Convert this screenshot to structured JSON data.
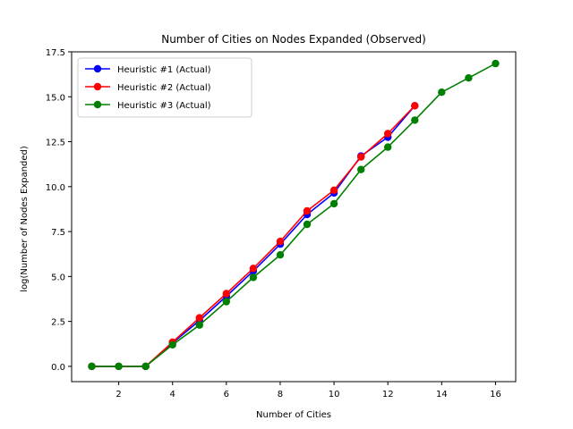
{
  "chart_data": {
    "type": "line",
    "title": "Number of Cities on Nodes Expanded (Observed)",
    "xlabel": "Number of Cities",
    "ylabel": "log(Number of Nodes Expanded)",
    "xlim": [
      0.25,
      16.75
    ],
    "ylim": [
      -0.85,
      17.5
    ],
    "xticks": [
      2,
      4,
      6,
      8,
      10,
      12,
      14,
      16
    ],
    "xtick_labels": [
      "2",
      "4",
      "6",
      "8",
      "10",
      "12",
      "14",
      "16"
    ],
    "yticks": [
      0,
      2.5,
      5,
      7.5,
      10,
      12.5,
      15,
      17.5
    ],
    "ytick_labels": [
      "0.0",
      "2.5",
      "5.0",
      "7.5",
      "10.0",
      "12.5",
      "15.0",
      "17.5"
    ],
    "grid": false,
    "legend_position": "upper-left",
    "series": [
      {
        "name": "Heuristic #1 (Actual)",
        "color": "#0000ff",
        "x": [
          1,
          2,
          3,
          4,
          5,
          6,
          7,
          8,
          9,
          10,
          11,
          12,
          13
        ],
        "y": [
          0.0,
          0.0,
          0.0,
          1.3,
          2.55,
          3.9,
          5.3,
          6.8,
          8.45,
          9.65,
          11.7,
          12.75,
          14.5
        ]
      },
      {
        "name": "Heuristic #2 (Actual)",
        "color": "#ff0000",
        "x": [
          1,
          2,
          3,
          4,
          5,
          6,
          7,
          8,
          9,
          10,
          11,
          12,
          13
        ],
        "y": [
          0.0,
          0.0,
          0.0,
          1.35,
          2.7,
          4.05,
          5.45,
          6.95,
          8.65,
          9.8,
          11.65,
          12.95,
          14.5
        ]
      },
      {
        "name": "Heuristic #3 (Actual)",
        "color": "#008000",
        "x": [
          1,
          2,
          3,
          4,
          5,
          6,
          7,
          8,
          9,
          10,
          11,
          12,
          13,
          14,
          15,
          16
        ],
        "y": [
          0.0,
          0.0,
          0.0,
          1.2,
          2.3,
          3.6,
          4.95,
          6.2,
          7.9,
          9.05,
          10.95,
          12.2,
          13.7,
          15.25,
          16.05,
          16.85
        ]
      }
    ]
  }
}
